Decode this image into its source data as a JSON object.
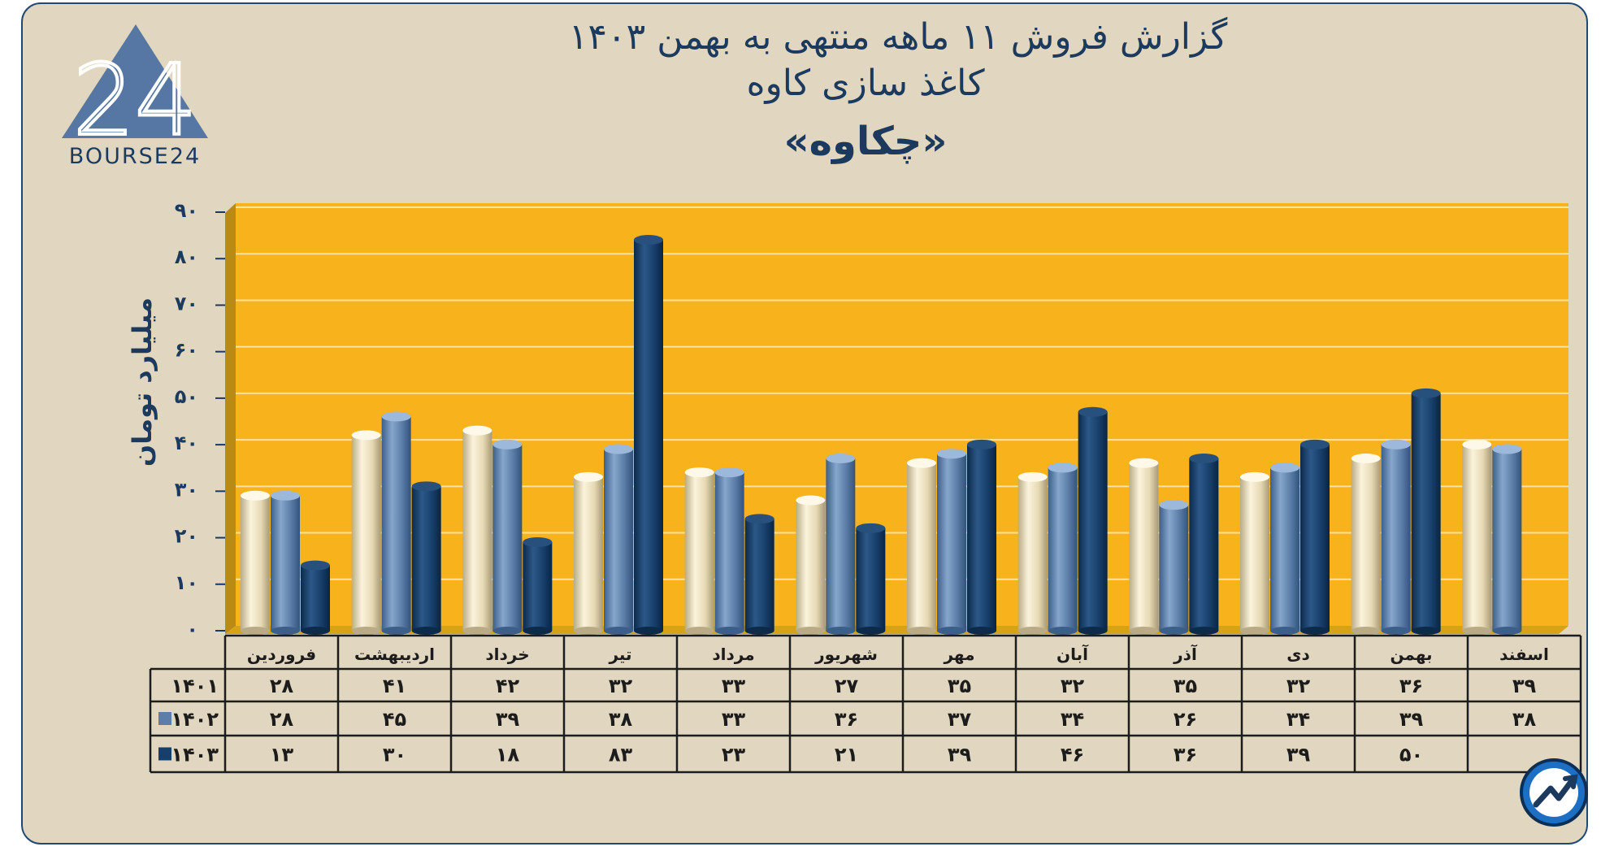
{
  "title": {
    "line1": "گزارش  فروش ۱۱ ماهه منتهی به بهمن ۱۴۰۳",
    "line2": "کاغذ سازی کاوه",
    "line3": "«چکاوه»"
  },
  "logo": {
    "glyph": "24",
    "text": "BOURSE24"
  },
  "chart_data": {
    "type": "bar",
    "ylabel": "میلیارد تومان",
    "ylim": [
      0,
      90
    ],
    "yticks": [
      "۰",
      "۱۰",
      "۲۰",
      "۳۰",
      "۴۰",
      "۵۰",
      "۶۰",
      "۷۰",
      "۸۰",
      "۹۰"
    ],
    "grid": true,
    "categories": [
      "فروردین",
      "اردیبهشت",
      "خرداد",
      "تیر",
      "مرداد",
      "شهریور",
      "مهر",
      "آبان",
      "آذر",
      "دی",
      "بهمن",
      "اسفند"
    ],
    "series": [
      {
        "name": "۱۴۰۱",
        "color": "#e8dcb8",
        "values": [
          28,
          41,
          42,
          32,
          33,
          27,
          35,
          32,
          35,
          32,
          36,
          39
        ],
        "labels": [
          "۲۸",
          "۴۱",
          "۴۲",
          "۳۲",
          "۳۳",
          "۲۷",
          "۳۵",
          "۳۲",
          "۳۵",
          "۳۲",
          "۳۶",
          "۳۹"
        ]
      },
      {
        "name": "۱۴۰۲",
        "color": "#5c7ea8",
        "values": [
          28,
          45,
          39,
          38,
          33,
          36,
          37,
          34,
          26,
          34,
          39,
          38
        ],
        "labels": [
          "۲۸",
          "۴۵",
          "۳۹",
          "۳۸",
          "۳۳",
          "۳۶",
          "۳۷",
          "۳۴",
          "۲۶",
          "۳۴",
          "۳۹",
          "۳۸"
        ]
      },
      {
        "name": "۱۴۰۳",
        "color": "#173f6b",
        "values": [
          13,
          30,
          18,
          83,
          23,
          21,
          39,
          46,
          36,
          39,
          50,
          null
        ],
        "labels": [
          "۱۳",
          "۳۰",
          "۱۸",
          "۸۳",
          "۲۳",
          "۲۱",
          "۳۹",
          "۴۶",
          "۳۶",
          "۳۹",
          "۵۰",
          ""
        ]
      }
    ],
    "colors": {
      "plot_background": "#f7b21c",
      "floor": "#d6a316",
      "frame": "#e1d6bf",
      "text": "#1c3a5e"
    }
  }
}
